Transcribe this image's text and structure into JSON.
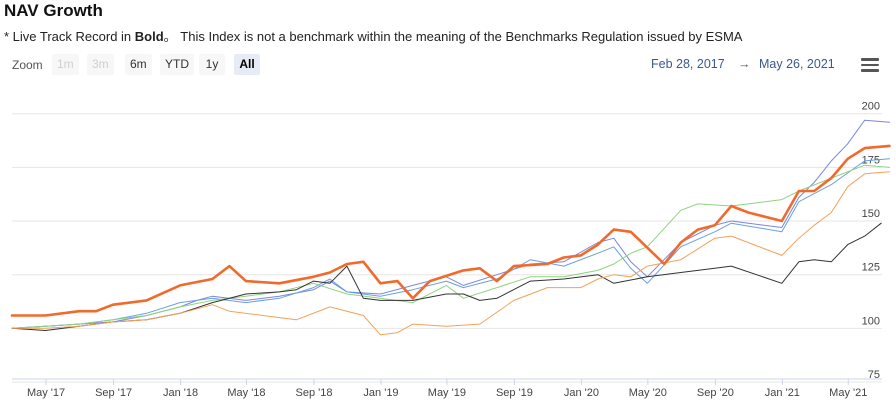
{
  "header": {
    "title": "NAV Growth",
    "subtitle_prefix": "* Live Track Record in ",
    "subtitle_bold": "Bold",
    "subtitle_suffix": "。  This Index is not a benchmark within the meaning of the Benchmarks Regulation issued by ESMA"
  },
  "range_selector": {
    "zoom_label": "Zoom",
    "buttons": [
      {
        "label": "1m",
        "state": "disabled"
      },
      {
        "label": "3m",
        "state": "disabled"
      },
      {
        "label": "6m",
        "state": "normal"
      },
      {
        "label": "YTD",
        "state": "normal"
      },
      {
        "label": "1y",
        "state": "normal"
      },
      {
        "label": "All",
        "state": "active"
      }
    ],
    "from": "Feb 28, 2017",
    "arrow": "→",
    "to": "May 26, 2021"
  },
  "menu": {
    "icon": "hamburger-menu-icon"
  },
  "chart_data": {
    "type": "line",
    "title": "NAV Growth",
    "xlabel": "",
    "ylabel": "",
    "x_ticks": [
      "May '17",
      "Sep '17",
      "Jan '18",
      "May '18",
      "Sep '18",
      "Jan '19",
      "May '19",
      "Sep '19",
      "Jan '20",
      "May '20",
      "Sep '20",
      "Jan '21",
      "May '21"
    ],
    "y_ticks": [
      75,
      100,
      125,
      150,
      175,
      200
    ],
    "ylim": [
      75,
      205
    ],
    "xlim": [
      "2017-02-28",
      "2021-05-26"
    ],
    "grid": true,
    "legend": "none",
    "series": [
      {
        "color": "#7b86e0",
        "width": 1,
        "points": [
          [
            "2017-02-28",
            100
          ],
          [
            "2017-04-30",
            101
          ],
          [
            "2017-06-30",
            102
          ],
          [
            "2017-08-31",
            103
          ],
          [
            "2017-10-31",
            106
          ],
          [
            "2017-12-31",
            110
          ],
          [
            "2018-01-31",
            113
          ],
          [
            "2018-02-28",
            115
          ],
          [
            "2018-04-30",
            113
          ],
          [
            "2018-06-30",
            115
          ],
          [
            "2018-08-31",
            118
          ],
          [
            "2018-09-30",
            122
          ],
          [
            "2018-10-31",
            117
          ],
          [
            "2018-12-31",
            116
          ],
          [
            "2019-02-28",
            120
          ],
          [
            "2019-04-30",
            124
          ],
          [
            "2019-05-31",
            120
          ],
          [
            "2019-07-31",
            125
          ],
          [
            "2019-09-30",
            130
          ],
          [
            "2019-11-30",
            131
          ],
          [
            "2020-01-31",
            140
          ],
          [
            "2020-02-29",
            142
          ],
          [
            "2020-03-31",
            131
          ],
          [
            "2020-04-30",
            124
          ],
          [
            "2020-06-30",
            140
          ],
          [
            "2020-08-31",
            148
          ],
          [
            "2020-09-30",
            150
          ],
          [
            "2020-12-31",
            147
          ],
          [
            "2021-01-31",
            161
          ],
          [
            "2021-02-28",
            168
          ],
          [
            "2021-03-31",
            178
          ],
          [
            "2021-04-30",
            186
          ],
          [
            "2021-05-31",
            197
          ],
          [
            "2021-07-15",
            196
          ]
        ]
      },
      {
        "color": "#6aa0e2",
        "width": 1,
        "points": [
          [
            "2017-02-28",
            100
          ],
          [
            "2017-04-30",
            101
          ],
          [
            "2017-06-30",
            102
          ],
          [
            "2017-08-31",
            104
          ],
          [
            "2017-10-31",
            107
          ],
          [
            "2017-12-31",
            112
          ],
          [
            "2018-02-28",
            114
          ],
          [
            "2018-04-30",
            112
          ],
          [
            "2018-06-30",
            114
          ],
          [
            "2018-08-31",
            119
          ],
          [
            "2018-09-30",
            123
          ],
          [
            "2018-10-31",
            117
          ],
          [
            "2018-12-31",
            115
          ],
          [
            "2019-02-28",
            118
          ],
          [
            "2019-04-30",
            122
          ],
          [
            "2019-05-31",
            119
          ],
          [
            "2019-07-31",
            123
          ],
          [
            "2019-09-30",
            132
          ],
          [
            "2019-11-30",
            129
          ],
          [
            "2020-01-31",
            135
          ],
          [
            "2020-02-29",
            138
          ],
          [
            "2020-03-31",
            128
          ],
          [
            "2020-04-30",
            121
          ],
          [
            "2020-06-30",
            138
          ],
          [
            "2020-08-31",
            145
          ],
          [
            "2020-09-30",
            149
          ],
          [
            "2020-12-31",
            145
          ],
          [
            "2021-01-31",
            159
          ],
          [
            "2021-03-31",
            167
          ],
          [
            "2021-05-31",
            178
          ],
          [
            "2021-07-15",
            179
          ]
        ]
      },
      {
        "color": "#8fd37f",
        "width": 1,
        "points": [
          [
            "2017-02-28",
            100
          ],
          [
            "2017-04-30",
            101
          ],
          [
            "2017-06-30",
            102
          ],
          [
            "2017-08-31",
            104
          ],
          [
            "2017-10-31",
            106
          ],
          [
            "2017-12-31",
            110
          ],
          [
            "2018-02-28",
            113
          ],
          [
            "2018-04-30",
            115
          ],
          [
            "2018-06-30",
            117
          ],
          [
            "2018-08-31",
            121
          ],
          [
            "2018-10-31",
            116
          ],
          [
            "2018-12-31",
            114
          ],
          [
            "2019-02-28",
            112
          ],
          [
            "2019-04-30",
            120
          ],
          [
            "2019-05-31",
            114
          ],
          [
            "2019-07-31",
            119
          ],
          [
            "2019-09-30",
            124
          ],
          [
            "2019-11-30",
            124
          ],
          [
            "2020-01-31",
            127
          ],
          [
            "2020-02-29",
            130
          ],
          [
            "2020-03-31",
            135
          ],
          [
            "2020-04-30",
            138
          ],
          [
            "2020-06-30",
            155
          ],
          [
            "2020-07-31",
            158
          ],
          [
            "2020-09-30",
            157
          ],
          [
            "2020-12-31",
            160
          ],
          [
            "2021-01-31",
            164
          ],
          [
            "2021-03-31",
            170
          ],
          [
            "2021-05-31",
            176
          ],
          [
            "2021-07-15",
            175
          ]
        ]
      },
      {
        "color": "#333333",
        "width": 1,
        "points": [
          [
            "2017-02-28",
            100
          ],
          [
            "2017-04-30",
            99
          ],
          [
            "2017-06-30",
            101
          ],
          [
            "2017-08-31",
            103
          ],
          [
            "2017-10-31",
            104
          ],
          [
            "2017-12-31",
            107
          ],
          [
            "2018-02-28",
            112
          ],
          [
            "2018-04-30",
            116
          ],
          [
            "2018-06-30",
            117
          ],
          [
            "2018-07-31",
            118
          ],
          [
            "2018-08-31",
            122
          ],
          [
            "2018-09-30",
            121
          ],
          [
            "2018-10-31",
            129
          ],
          [
            "2018-11-30",
            114
          ],
          [
            "2018-12-31",
            113
          ],
          [
            "2019-02-28",
            113
          ],
          [
            "2019-04-30",
            116
          ],
          [
            "2019-05-31",
            116
          ],
          [
            "2019-06-30",
            113
          ],
          [
            "2019-07-31",
            114
          ],
          [
            "2019-09-30",
            122
          ],
          [
            "2019-11-30",
            123
          ],
          [
            "2020-01-31",
            125
          ],
          [
            "2020-02-29",
            121
          ],
          [
            "2020-04-30",
            124
          ],
          [
            "2020-06-30",
            126
          ],
          [
            "2020-08-31",
            128
          ],
          [
            "2020-09-30",
            129
          ],
          [
            "2020-12-31",
            121
          ],
          [
            "2021-01-31",
            131
          ],
          [
            "2021-02-28",
            132
          ],
          [
            "2021-03-31",
            131
          ],
          [
            "2021-04-30",
            139
          ],
          [
            "2021-05-31",
            143
          ],
          [
            "2021-06-30",
            149
          ]
        ]
      },
      {
        "color": "#f5a15a",
        "width": 1,
        "points": [
          [
            "2017-02-28",
            100
          ],
          [
            "2017-04-30",
            100
          ],
          [
            "2017-06-30",
            101
          ],
          [
            "2017-08-31",
            103
          ],
          [
            "2017-10-31",
            104
          ],
          [
            "2017-12-31",
            107
          ],
          [
            "2018-02-28",
            111
          ],
          [
            "2018-03-31",
            108
          ],
          [
            "2018-05-31",
            106
          ],
          [
            "2018-07-31",
            104
          ],
          [
            "2018-09-30",
            110
          ],
          [
            "2018-11-30",
            106
          ],
          [
            "2018-12-31",
            97
          ],
          [
            "2019-01-31",
            98
          ],
          [
            "2019-02-28",
            102
          ],
          [
            "2019-04-30",
            101
          ],
          [
            "2019-06-30",
            102
          ],
          [
            "2019-08-31",
            113
          ],
          [
            "2019-10-31",
            119
          ],
          [
            "2019-12-31",
            119
          ],
          [
            "2020-01-31",
            123
          ],
          [
            "2020-02-29",
            125
          ],
          [
            "2020-03-31",
            124
          ],
          [
            "2020-04-30",
            129
          ],
          [
            "2020-06-30",
            132
          ],
          [
            "2020-08-31",
            142
          ],
          [
            "2020-09-30",
            143
          ],
          [
            "2020-12-31",
            134
          ],
          [
            "2021-01-31",
            142
          ],
          [
            "2021-02-28",
            148
          ],
          [
            "2021-03-31",
            154
          ],
          [
            "2021-04-30",
            166
          ],
          [
            "2021-05-31",
            172
          ],
          [
            "2021-07-15",
            173
          ]
        ]
      },
      {
        "color": "#f26a2a",
        "width": 2.6,
        "points": [
          [
            "2017-02-28",
            106
          ],
          [
            "2017-04-30",
            106
          ],
          [
            "2017-06-30",
            108
          ],
          [
            "2017-07-31",
            108
          ],
          [
            "2017-08-31",
            111
          ],
          [
            "2017-10-31",
            113
          ],
          [
            "2017-12-31",
            120
          ],
          [
            "2018-02-28",
            123
          ],
          [
            "2018-03-31",
            129
          ],
          [
            "2018-04-30",
            122
          ],
          [
            "2018-06-30",
            121
          ],
          [
            "2018-08-31",
            124
          ],
          [
            "2018-09-30",
            126
          ],
          [
            "2018-10-31",
            130
          ],
          [
            "2018-11-30",
            131
          ],
          [
            "2018-12-31",
            121
          ],
          [
            "2019-01-31",
            122
          ],
          [
            "2019-02-28",
            114
          ],
          [
            "2019-03-31",
            122
          ],
          [
            "2019-05-31",
            127
          ],
          [
            "2019-06-30",
            128
          ],
          [
            "2019-07-31",
            122
          ],
          [
            "2019-08-31",
            129
          ],
          [
            "2019-10-31",
            130
          ],
          [
            "2019-11-30",
            133
          ],
          [
            "2019-12-31",
            134
          ],
          [
            "2020-01-31",
            139
          ],
          [
            "2020-02-29",
            146
          ],
          [
            "2020-03-31",
            145
          ],
          [
            "2020-05-31",
            130
          ],
          [
            "2020-06-30",
            140
          ],
          [
            "2020-07-31",
            146
          ],
          [
            "2020-08-31",
            148
          ],
          [
            "2020-09-30",
            157
          ],
          [
            "2020-10-31",
            154
          ],
          [
            "2020-12-31",
            150
          ],
          [
            "2021-01-31",
            164
          ],
          [
            "2021-02-28",
            164
          ],
          [
            "2021-03-31",
            170
          ],
          [
            "2021-04-30",
            179
          ],
          [
            "2021-05-31",
            184
          ],
          [
            "2021-07-15",
            185
          ]
        ]
      }
    ]
  }
}
